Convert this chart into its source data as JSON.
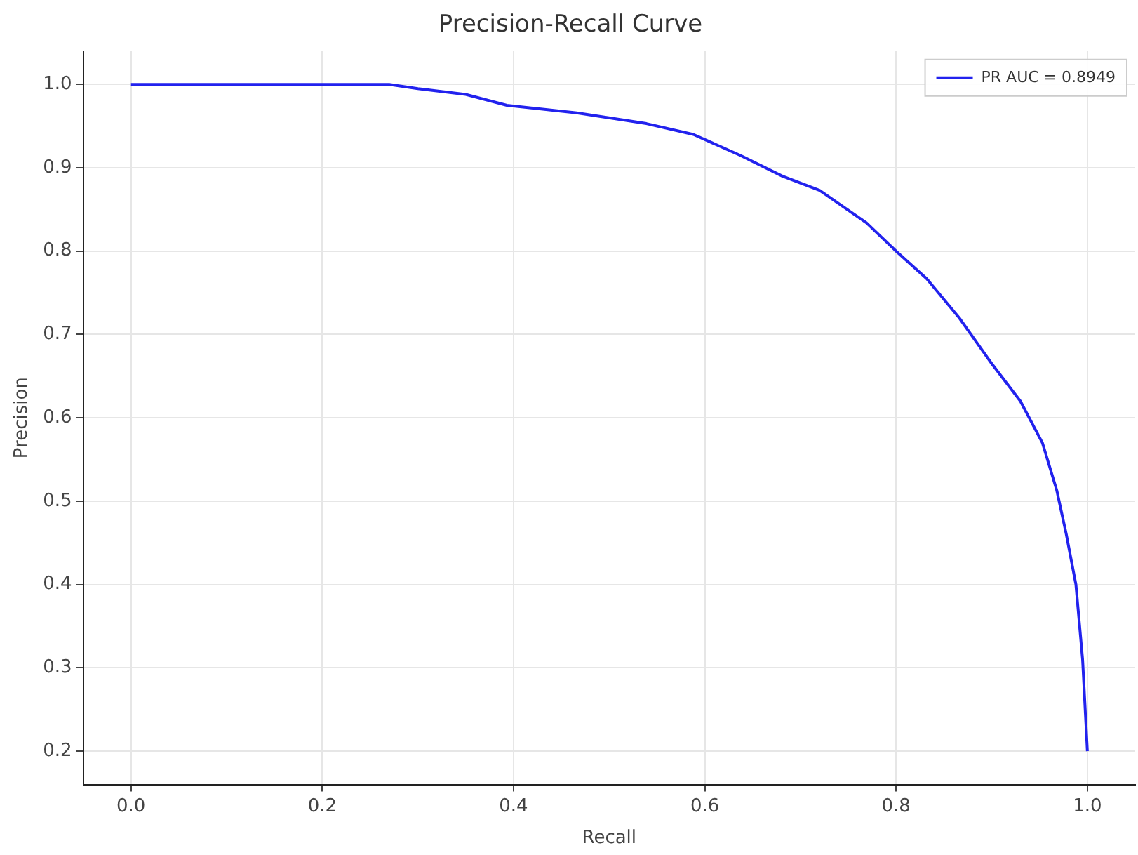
{
  "chart_data": {
    "type": "line",
    "title": "Precision-Recall Curve",
    "xlabel": "Recall",
    "ylabel": "Precision",
    "xlim": [
      -0.05,
      1.05
    ],
    "xticks": [
      {
        "value": 0,
        "label": "0.0"
      },
      0.2,
      0.4,
      0.6,
      0.8,
      {
        "value": 1,
        "label": "1.0"
      }
    ],
    "ylim": [
      0.16,
      1.04
    ],
    "yticks": [
      0.2,
      0.3,
      0.4,
      0.5,
      0.6,
      0.7,
      0.8,
      0.9,
      {
        "value": 1,
        "label": "1.0"
      }
    ],
    "grid": true,
    "legend": "top right",
    "marker": "none",
    "line_style": "solid",
    "series": [
      {
        "name": "PR AUC = 0.8949",
        "color": "#2222ee",
        "x": [
          0,
          0.1,
          0.2,
          0.27,
          0.3,
          0.35,
          0.393,
          0.466,
          0.539,
          0.588,
          0.637,
          0.681,
          0.72,
          0.769,
          0.8,
          0.832,
          0.866,
          0.9,
          0.93,
          0.953,
          0.968,
          0.978,
          0.988,
          0.995,
          1
        ],
        "values": [
          1,
          1,
          1,
          1,
          0.995,
          0.988,
          0.975,
          0.966,
          0.953,
          0.94,
          0.915,
          0.89,
          0.873,
          0.834,
          0.8,
          0.767,
          0.72,
          0.665,
          0.62,
          0.57,
          0.513,
          0.46,
          0.4,
          0.31,
          0.2
        ]
      }
    ]
  }
}
